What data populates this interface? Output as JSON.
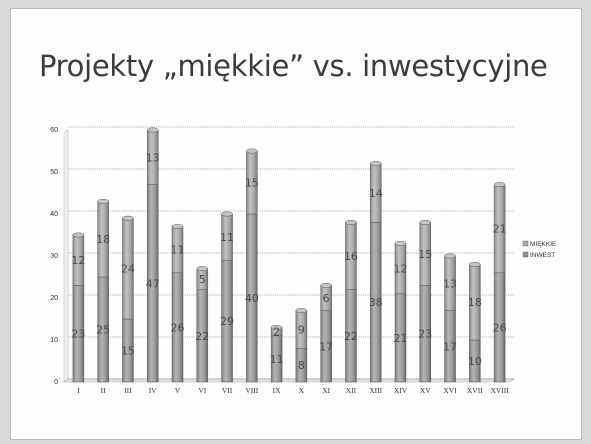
{
  "slide": {
    "title": "Projekty „miękkie” vs. inwestycyjne"
  },
  "chart_data": {
    "type": "bar",
    "stacked": true,
    "categories": [
      "I",
      "II",
      "III",
      "IV",
      "V",
      "VI",
      "VII",
      "VIII",
      "IX",
      "X",
      "XI",
      "XII",
      "XIII",
      "XIV",
      "XV",
      "XVI",
      "XVII",
      "XVIII"
    ],
    "series": [
      {
        "name": "INWEST",
        "values": [
          23,
          25,
          15,
          47,
          26,
          22,
          29,
          40,
          11,
          8,
          17,
          22,
          38,
          21,
          23,
          17,
          10,
          26
        ],
        "color": "#8f8f8f"
      },
      {
        "name": "MIĘKKIE",
        "values": [
          12,
          18,
          24,
          13,
          11,
          5,
          11,
          15,
          2,
          9,
          6,
          16,
          14,
          12,
          15,
          13,
          18,
          21
        ],
        "color": "#a6a6a6"
      }
    ],
    "bar_labels": [
      [
        "23",
        "12"
      ],
      [
        "25",
        "18"
      ],
      [
        "15",
        "24"
      ],
      [
        "47",
        "13"
      ],
      [
        "26",
        "11"
      ],
      [
        "22",
        "5"
      ],
      [
        "29",
        "11"
      ],
      [
        "40",
        "15"
      ],
      [
        "11",
        "2"
      ],
      [
        "8",
        "9"
      ],
      [
        "17",
        "6"
      ],
      [
        "22",
        "16"
      ],
      [
        "38",
        "14"
      ],
      [
        "21",
        "12"
      ],
      [
        "23",
        "15"
      ],
      [
        "17",
        "13"
      ],
      [
        "10",
        "18"
      ],
      [
        "26",
        "21"
      ]
    ],
    "ylim": [
      0,
      60
    ],
    "yticks": [
      "0",
      "10",
      "20",
      "30",
      "40",
      "50",
      "60"
    ],
    "legend": [
      "MIĘKKIE",
      "INWEST"
    ],
    "legend_position": "right",
    "grid": true,
    "style": "3d-cylinder"
  }
}
